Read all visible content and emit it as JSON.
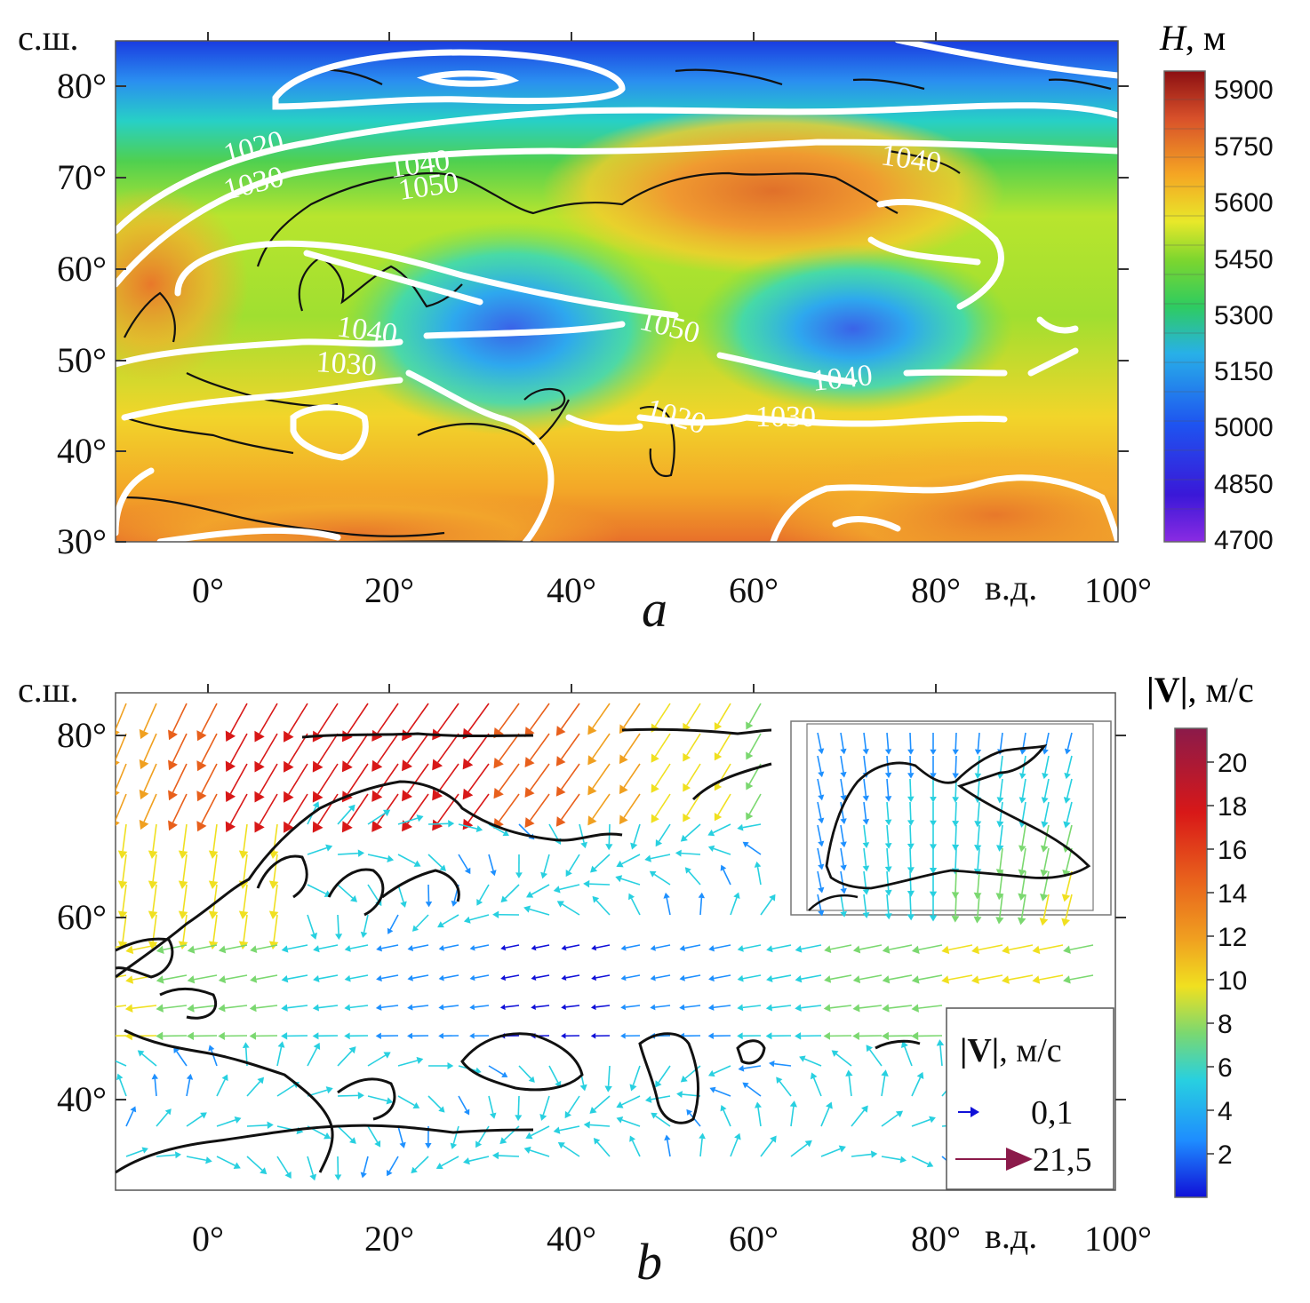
{
  "panel_a": {
    "letter": "a",
    "lat_unit": "с.ш.",
    "lon_unit": "в.д.",
    "lat_ticks": [
      "80°",
      "70°",
      "60°",
      "50°",
      "40°",
      "30°"
    ],
    "lon_ticks": [
      "0°",
      "20°",
      "40°",
      "60°",
      "80°",
      "100°"
    ],
    "colorbar_title_var": "H",
    "colorbar_title_unit": ", м",
    "colorbar_ticks": [
      "5900",
      "5750",
      "5600",
      "5450",
      "5300",
      "5150",
      "5000",
      "4850",
      "4700"
    ],
    "isobar_labels": [
      "1020",
      "1030",
      "1040",
      "1050",
      "1040",
      "1030",
      "1050",
      "1040",
      "1030",
      "1020",
      "1040"
    ]
  },
  "panel_b": {
    "letter": "b",
    "lat_unit": "с.ш.",
    "lon_unit": "в.д.",
    "lat_ticks": [
      "80°",
      "60°",
      "40°"
    ],
    "lon_ticks": [
      "0°",
      "20°",
      "40°",
      "60°",
      "80°",
      "100°"
    ],
    "colorbar_title_var": "|V|",
    "colorbar_title_unit": ", м/с",
    "colorbar_ticks": [
      "20",
      "18",
      "16",
      "14",
      "12",
      "10",
      "8",
      "6",
      "4",
      "2"
    ],
    "legend_title_var": "|V|",
    "legend_title_unit": ", м/с",
    "legend_min": "0,1",
    "legend_max": "21,5"
  },
  "colors": {
    "height_scale": [
      "#8a2be2",
      "#3a18d8",
      "#1e54f0",
      "#28a8e8",
      "#27d6c8",
      "#2ecc40",
      "#a6e22e",
      "#f6e02a",
      "#f5a623",
      "#e8702a",
      "#c0392b",
      "#8b0f12"
    ],
    "speed_scale": [
      "#1010d8",
      "#1e90ff",
      "#28d0e0",
      "#7bd870",
      "#f0e020",
      "#f0a020",
      "#e8601c",
      "#d81818",
      "#8b1a4a"
    ]
  }
}
